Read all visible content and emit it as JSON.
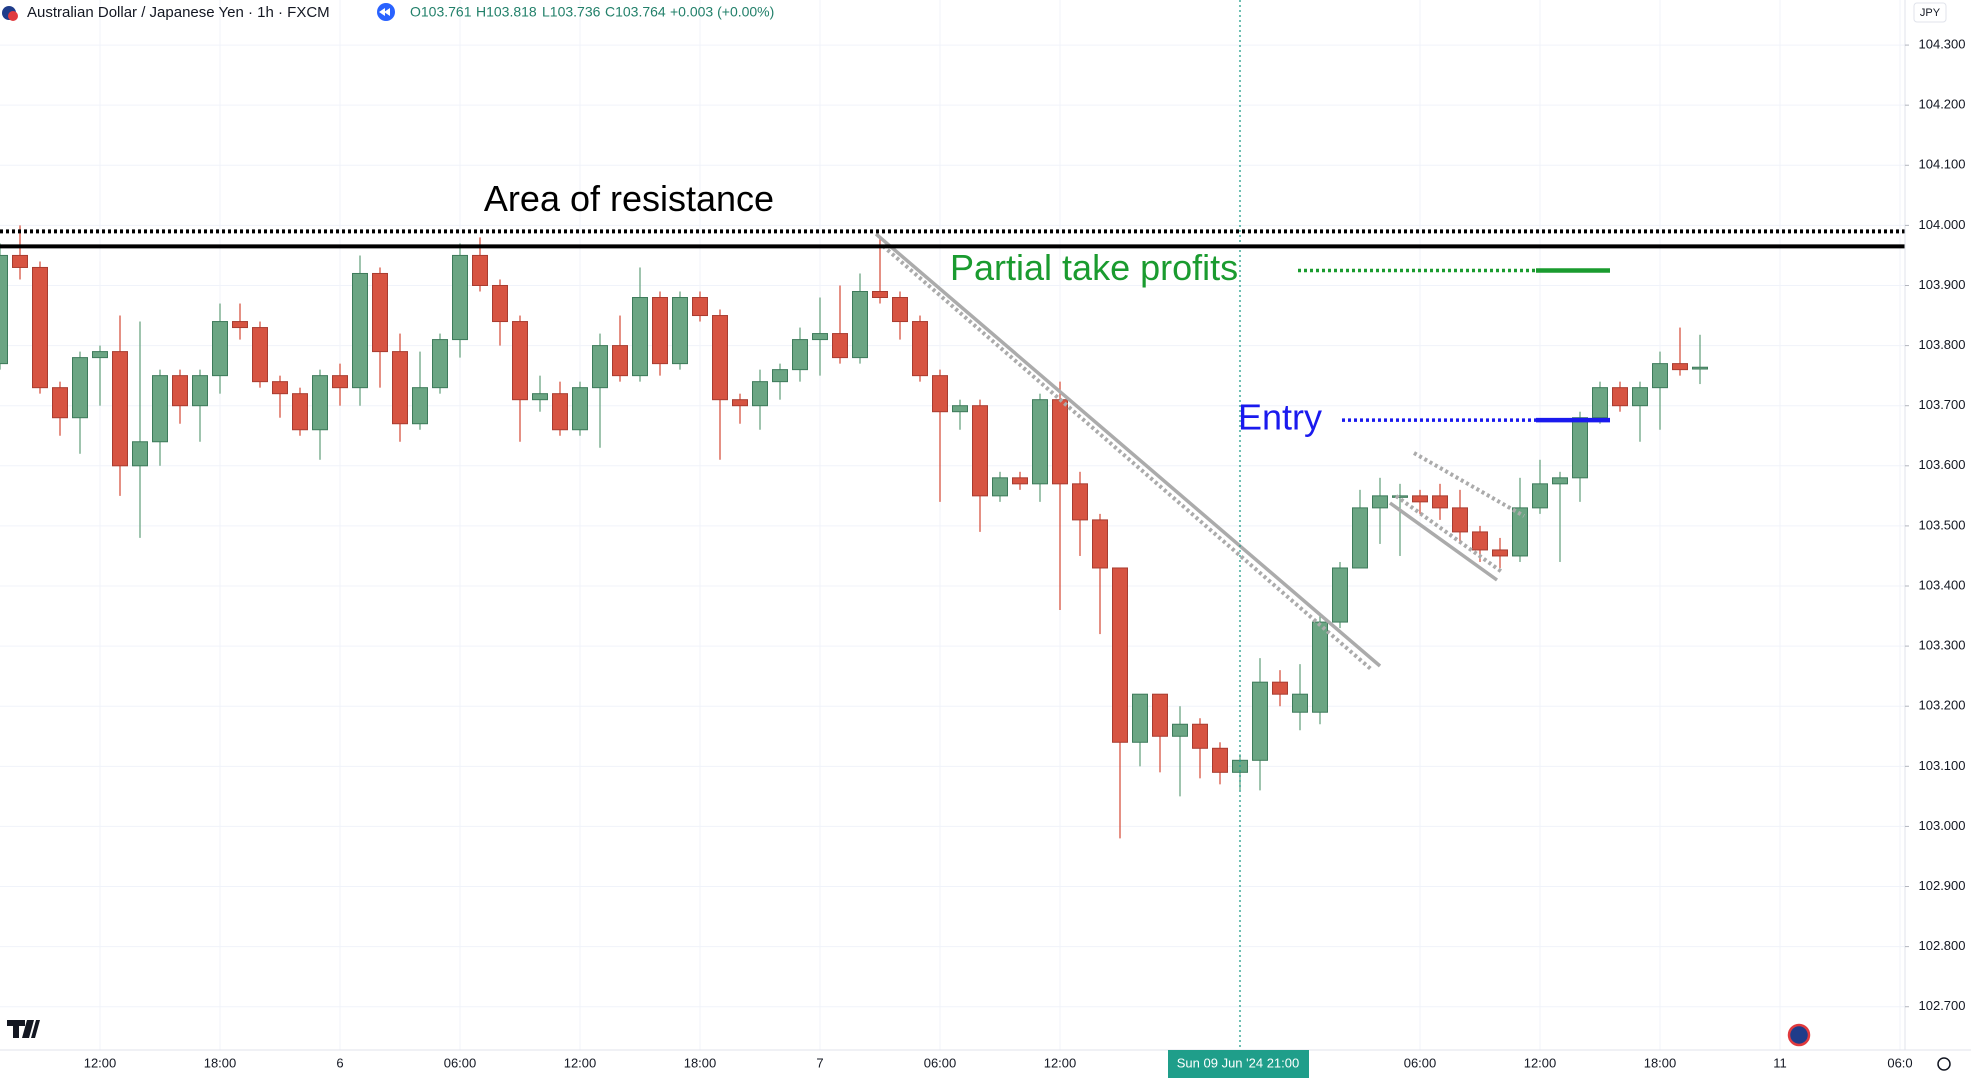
{
  "header": {
    "title": "Australian Dollar / Japanese Yen · 1h · FXCM",
    "open": "O103.761",
    "high": "H103.818",
    "low": "L103.736",
    "close": "C103.764",
    "change": "+0.003 (+0.00%)",
    "currency": "JPY"
  },
  "chart_data": {
    "type": "candlestick",
    "categories": [
      null,
      null,
      null,
      null,
      null,
      "12:00",
      null,
      null,
      null,
      null,
      null,
      "18:00",
      null,
      null,
      null,
      null,
      null,
      "6",
      null,
      null,
      null,
      null,
      null,
      "06:00",
      null,
      null,
      null,
      null,
      null,
      "12:00",
      null,
      null,
      null,
      null,
      null,
      "18:00",
      null,
      null,
      null,
      null,
      null,
      "7",
      null,
      null,
      null,
      null,
      null,
      "06:00",
      null,
      null,
      null,
      null,
      null,
      "12:00",
      null,
      null,
      null,
      null,
      null,
      null,
      null,
      null,
      "Sun 09 Jun '24  21:00",
      null,
      null,
      null,
      null,
      null,
      null,
      null,
      null,
      "06:00",
      null,
      null,
      null,
      null,
      null,
      "12:00",
      null,
      null,
      null,
      null,
      null,
      "18:00",
      null,
      null
    ],
    "future_categories": [
      null,
      null,
      null,
      "11",
      null,
      null,
      null,
      null,
      null,
      "06:0"
    ],
    "open": [
      103.77,
      103.95,
      103.93,
      103.73,
      103.68,
      103.78,
      103.79,
      103.6,
      103.64,
      103.75,
      103.7,
      103.75,
      103.84,
      103.83,
      103.74,
      103.72,
      103.66,
      103.75,
      103.73,
      103.92,
      103.79,
      103.67,
      103.73,
      103.81,
      103.95,
      103.9,
      103.84,
      103.71,
      103.72,
      103.66,
      103.73,
      103.8,
      103.75,
      103.88,
      103.77,
      103.88,
      103.85,
      103.71,
      103.7,
      103.74,
      103.76,
      103.81,
      103.82,
      103.78,
      103.89,
      103.88,
      103.84,
      103.75,
      103.69,
      103.7,
      103.55,
      103.58,
      103.57,
      103.71,
      103.57,
      103.51,
      103.43,
      103.14,
      103.22,
      103.15,
      103.17,
      103.13,
      103.09,
      103.11,
      103.24,
      103.19,
      103.19,
      103.34,
      103.43,
      103.53,
      103.55,
      103.55,
      103.55,
      103.53,
      103.49,
      103.46,
      103.45,
      103.53,
      103.57,
      103.58,
      103.68,
      103.73,
      103.7,
      103.73,
      103.77,
      103.761
    ],
    "high": [
      103.97,
      104.0,
      103.94,
      103.74,
      103.79,
      103.8,
      103.85,
      103.84,
      103.76,
      103.76,
      103.76,
      103.87,
      103.87,
      103.84,
      103.75,
      103.73,
      103.76,
      103.77,
      103.95,
      103.93,
      103.82,
      103.79,
      103.82,
      103.97,
      103.98,
      103.91,
      103.85,
      103.75,
      103.74,
      103.74,
      103.82,
      103.85,
      103.93,
      103.89,
      103.89,
      103.89,
      103.86,
      103.72,
      103.76,
      103.77,
      103.83,
      103.88,
      103.9,
      103.92,
      103.98,
      103.89,
      103.85,
      103.76,
      103.71,
      103.71,
      103.59,
      103.59,
      103.72,
      103.74,
      103.59,
      103.52,
      103.43,
      103.22,
      103.22,
      103.2,
      103.18,
      103.14,
      103.12,
      103.28,
      103.26,
      103.27,
      103.35,
      103.44,
      103.56,
      103.58,
      103.57,
      103.56,
      103.57,
      103.56,
      103.5,
      103.48,
      103.58,
      103.61,
      103.59,
      103.69,
      103.74,
      103.74,
      103.74,
      103.79,
      103.83,
      103.818
    ],
    "low": [
      103.76,
      103.91,
      103.72,
      103.65,
      103.62,
      103.7,
      103.55,
      103.48,
      103.6,
      103.67,
      103.64,
      103.72,
      103.81,
      103.73,
      103.68,
      103.65,
      103.61,
      103.7,
      103.7,
      103.73,
      103.64,
      103.66,
      103.72,
      103.78,
      103.89,
      103.8,
      103.64,
      103.69,
      103.65,
      103.65,
      103.63,
      103.74,
      103.74,
      103.75,
      103.76,
      103.84,
      103.61,
      103.67,
      103.66,
      103.71,
      103.74,
      103.75,
      103.77,
      103.77,
      103.87,
      103.81,
      103.74,
      103.54,
      103.66,
      103.49,
      103.54,
      103.56,
      103.54,
      103.36,
      103.45,
      103.32,
      102.98,
      103.1,
      103.09,
      103.05,
      103.08,
      103.07,
      103.06,
      103.06,
      103.2,
      103.16,
      103.17,
      103.33,
      103.43,
      103.47,
      103.45,
      103.52,
      103.51,
      103.47,
      103.44,
      103.43,
      103.44,
      103.52,
      103.44,
      103.54,
      103.67,
      103.69,
      103.64,
      103.66,
      103.75,
      103.736
    ],
    "close": [
      103.95,
      103.93,
      103.73,
      103.68,
      103.78,
      103.79,
      103.6,
      103.64,
      103.75,
      103.7,
      103.75,
      103.84,
      103.83,
      103.74,
      103.72,
      103.66,
      103.75,
      103.73,
      103.92,
      103.79,
      103.67,
      103.73,
      103.81,
      103.95,
      103.9,
      103.84,
      103.71,
      103.72,
      103.66,
      103.73,
      103.8,
      103.75,
      103.88,
      103.77,
      103.88,
      103.85,
      103.71,
      103.7,
      103.74,
      103.76,
      103.81,
      103.82,
      103.78,
      103.89,
      103.88,
      103.84,
      103.75,
      103.69,
      103.7,
      103.55,
      103.58,
      103.57,
      103.71,
      103.57,
      103.51,
      103.43,
      103.14,
      103.22,
      103.15,
      103.17,
      103.13,
      103.09,
      103.11,
      103.24,
      103.22,
      103.22,
      103.34,
      103.43,
      103.53,
      103.55,
      103.55,
      103.54,
      103.53,
      103.49,
      103.46,
      103.45,
      103.53,
      103.57,
      103.58,
      103.68,
      103.73,
      103.7,
      103.73,
      103.77,
      103.76,
      103.764
    ],
    "up_color": "#6ba583",
    "down_color": "#d75442",
    "ylim": [
      102.628,
      104.375
    ],
    "yticks": [
      {
        "value": 104.3,
        "label": "104.300"
      },
      {
        "value": 104.2,
        "label": "104.200"
      },
      {
        "value": 104.1,
        "label": "104.100"
      },
      {
        "value": 104.0,
        "label": "104.000"
      },
      {
        "value": 103.9,
        "label": "103.900"
      },
      {
        "value": 103.8,
        "label": "103.800"
      },
      {
        "value": 103.7,
        "label": "103.700"
      },
      {
        "value": 103.6,
        "label": "103.600"
      },
      {
        "value": 103.5,
        "label": "103.500"
      },
      {
        "value": 103.4,
        "label": "103.400"
      },
      {
        "value": 103.3,
        "label": "103.300"
      },
      {
        "value": 103.2,
        "label": "103.200"
      },
      {
        "value": 103.1,
        "label": "103.100"
      },
      {
        "value": 103.0,
        "label": "103.000"
      },
      {
        "value": 102.9,
        "label": "102.900"
      },
      {
        "value": 102.8,
        "label": "102.800"
      },
      {
        "value": 102.7,
        "label": "102.700"
      }
    ],
    "grid": true,
    "resistance": {
      "text": "Area of resistance",
      "values": [
        103.99,
        103.965
      ],
      "color": "#000000"
    },
    "partial_take_profit": {
      "text": "Partial take profits",
      "value": 103.925,
      "color": "#1a9b2f"
    },
    "entry": {
      "text": "Entry",
      "value": 103.676,
      "color": "#1a1aee"
    }
  }
}
